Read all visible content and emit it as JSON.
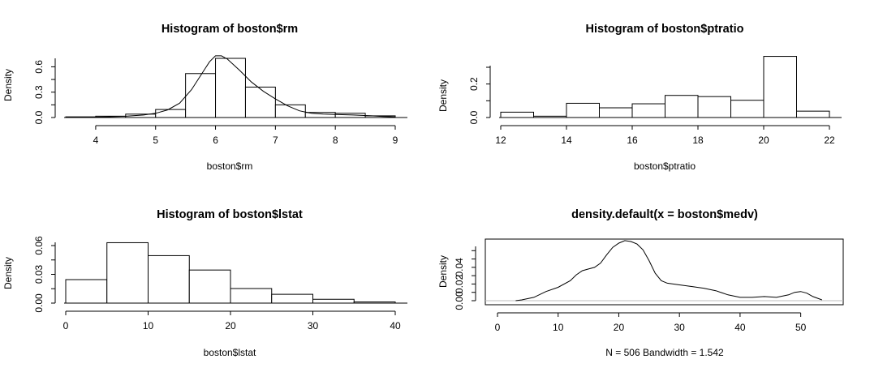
{
  "chart_data": [
    {
      "type": "bar",
      "kind": "histogram",
      "title": "Histogram of boston$rm",
      "xlabel": "boston$rm",
      "ylabel": "Density",
      "xlim": [
        3.5,
        9.0
      ],
      "ylim": [
        0,
        0.7
      ],
      "xticks": [
        4,
        5,
        6,
        7,
        8,
        9
      ],
      "yticks": [
        0.0,
        0.3,
        0.6
      ],
      "ytick_labels": [
        "0.0",
        "0.3",
        "0.6"
      ],
      "bins": [
        [
          3.5,
          4.0,
          0.008
        ],
        [
          4.0,
          4.5,
          0.016
        ],
        [
          4.5,
          5.0,
          0.04
        ],
        [
          5.0,
          5.5,
          0.095
        ],
        [
          5.5,
          6.0,
          0.52
        ],
        [
          6.0,
          6.5,
          0.7
        ],
        [
          6.5,
          7.0,
          0.36
        ],
        [
          7.0,
          7.5,
          0.15
        ],
        [
          7.5,
          8.0,
          0.06
        ],
        [
          8.0,
          8.5,
          0.05
        ],
        [
          8.5,
          9.0,
          0.02
        ]
      ],
      "curve": [
        [
          3.6,
          0.003
        ],
        [
          4.0,
          0.005
        ],
        [
          4.5,
          0.015
        ],
        [
          4.8,
          0.03
        ],
        [
          5.0,
          0.05
        ],
        [
          5.2,
          0.09
        ],
        [
          5.4,
          0.17
        ],
        [
          5.6,
          0.33
        ],
        [
          5.8,
          0.55
        ],
        [
          5.9,
          0.66
        ],
        [
          6.0,
          0.73
        ],
        [
          6.1,
          0.73
        ],
        [
          6.2,
          0.69
        ],
        [
          6.4,
          0.56
        ],
        [
          6.6,
          0.42
        ],
        [
          6.8,
          0.31
        ],
        [
          7.0,
          0.22
        ],
        [
          7.2,
          0.14
        ],
        [
          7.4,
          0.08
        ],
        [
          7.6,
          0.05
        ],
        [
          7.8,
          0.04
        ],
        [
          8.0,
          0.035
        ],
        [
          8.3,
          0.03
        ],
        [
          8.6,
          0.02
        ],
        [
          8.8,
          0.012
        ],
        [
          9.0,
          0.008
        ]
      ]
    },
    {
      "type": "bar",
      "kind": "histogram",
      "title": "Histogram of boston$ptratio",
      "xlabel": "boston$ptratio",
      "ylabel": "Density",
      "xlim": [
        12,
        22
      ],
      "ylim": [
        0,
        0.3
      ],
      "xticks": [
        12,
        14,
        16,
        18,
        20,
        22
      ],
      "yticks": [
        0.0,
        0.2
      ],
      "ytick_labels": [
        "0.0",
        "0.2"
      ],
      "bins": [
        [
          12,
          13,
          0.032
        ],
        [
          13,
          14,
          0.008
        ],
        [
          14,
          15,
          0.085
        ],
        [
          15,
          16,
          0.058
        ],
        [
          16,
          17,
          0.082
        ],
        [
          17,
          18,
          0.132
        ],
        [
          18,
          19,
          0.125
        ],
        [
          19,
          20,
          0.103
        ],
        [
          20,
          21,
          0.365
        ],
        [
          21,
          22,
          0.038
        ]
      ]
    },
    {
      "type": "bar",
      "kind": "histogram",
      "title": "Histogram of boston$lstat",
      "xlabel": "boston$lstat",
      "ylabel": "Density",
      "xlim": [
        0,
        40
      ],
      "ylim": [
        0,
        0.06
      ],
      "xticks": [
        0,
        10,
        20,
        30,
        40
      ],
      "yticks": [
        0.0,
        0.03,
        0.06
      ],
      "ytick_labels": [
        "0.00",
        "0.03",
        "0.06"
      ],
      "bins": [
        [
          0,
          5,
          0.0245
        ],
        [
          5,
          10,
          0.063
        ],
        [
          10,
          15,
          0.0495
        ],
        [
          15,
          20,
          0.0345
        ],
        [
          20,
          25,
          0.0152
        ],
        [
          25,
          30,
          0.0092
        ],
        [
          30,
          35,
          0.004
        ],
        [
          35,
          40,
          0.0012
        ]
      ]
    },
    {
      "type": "line",
      "kind": "density",
      "title": "density.default(x = boston$medv)",
      "xlabel": "N = 506   Bandwidth = 1.542",
      "ylabel": "Density",
      "xlim": [
        0,
        55
      ],
      "ylim": [
        0,
        0.07
      ],
      "xticks": [
        0,
        10,
        20,
        30,
        40,
        50
      ],
      "yticks": [
        0.0,
        0.02,
        0.04
      ],
      "ytick_labels": [
        "0.00",
        "0.02",
        "0.04"
      ],
      "curve": [
        [
          3,
          0.0
        ],
        [
          4,
          0.001
        ],
        [
          6,
          0.004
        ],
        [
          8,
          0.011
        ],
        [
          10,
          0.016
        ],
        [
          12,
          0.024
        ],
        [
          13,
          0.031
        ],
        [
          14,
          0.036
        ],
        [
          15,
          0.038
        ],
        [
          16,
          0.04
        ],
        [
          17,
          0.045
        ],
        [
          18,
          0.055
        ],
        [
          19,
          0.064
        ],
        [
          20,
          0.069
        ],
        [
          21,
          0.072
        ],
        [
          22,
          0.071
        ],
        [
          23,
          0.068
        ],
        [
          24,
          0.061
        ],
        [
          25,
          0.048
        ],
        [
          26,
          0.033
        ],
        [
          27,
          0.024
        ],
        [
          28,
          0.021
        ],
        [
          30,
          0.019
        ],
        [
          32,
          0.017
        ],
        [
          34,
          0.015
        ],
        [
          36,
          0.012
        ],
        [
          38,
          0.007
        ],
        [
          40,
          0.004
        ],
        [
          42,
          0.004
        ],
        [
          44,
          0.005
        ],
        [
          46,
          0.004
        ],
        [
          48,
          0.007
        ],
        [
          49,
          0.01
        ],
        [
          50,
          0.011
        ],
        [
          51,
          0.009
        ],
        [
          52,
          0.005
        ],
        [
          53.5,
          0.001
        ]
      ]
    }
  ]
}
